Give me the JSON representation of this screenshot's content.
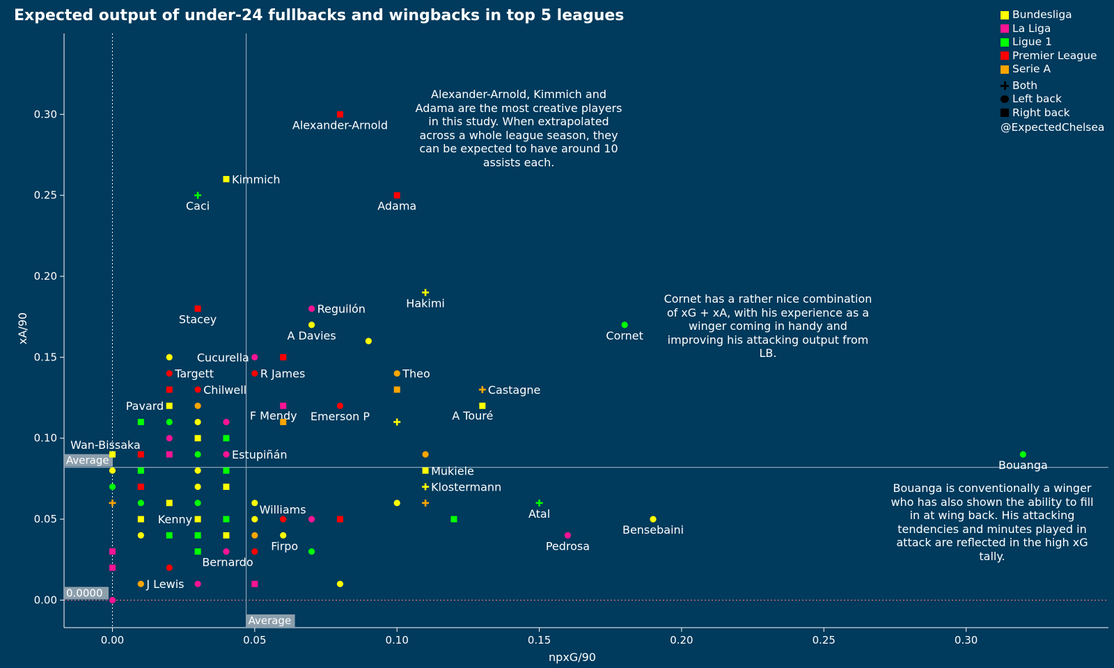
{
  "chart_data": {
    "type": "scatter",
    "title": "Expected output of under-24 fullbacks and wingbacks in top 5 leagues",
    "xlabel": "npxG/90",
    "ylabel": "xA/90",
    "xlim": [
      -0.017,
      0.35
    ],
    "ylim": [
      -0.017,
      0.35
    ],
    "x_ticks": [
      0,
      0.05,
      0.1,
      0.15,
      0.2,
      0.25,
      0.3
    ],
    "x_tick_labels": [
      "0.00",
      "0.05",
      "0.10",
      "0.15",
      "0.20",
      "0.25",
      "0.30"
    ],
    "y_ticks": [
      0,
      0.05,
      0.1,
      0.15,
      0.2,
      0.25,
      0.3
    ],
    "y_tick_labels": [
      "0.00",
      "0.05",
      "0.10",
      "0.15",
      "0.20",
      "0.25",
      "0.30"
    ],
    "reference_lines": {
      "x_average": 0.047,
      "x_average_label": "Average",
      "y_average": 0.082,
      "y_average_label": "Average",
      "y_zero_label": "0.0000"
    },
    "league_colors": {
      "Bundesliga": "#ffff00",
      "La Liga": "#ff1493",
      "Ligue 1": "#00ff00",
      "Premier League": "#ff0000",
      "Serie A": "#ffa500"
    },
    "legend": {
      "leagues": [
        "Bundesliga",
        "La Liga",
        "Ligue 1",
        "Premier League",
        "Serie A"
      ],
      "positions": [
        {
          "label": "Both",
          "shape": "cross"
        },
        {
          "label": "Left back",
          "shape": "circle"
        },
        {
          "label": "Right back",
          "shape": "square"
        }
      ],
      "credit": "@ExpectedChelsea"
    },
    "points": [
      {
        "x": 0.08,
        "y": 0.3,
        "league": "Premier League",
        "pos": "RB",
        "label": "Alexander-Arnold",
        "lp": "below"
      },
      {
        "x": 0.04,
        "y": 0.26,
        "league": "Bundesliga",
        "pos": "RB",
        "label": "Kimmich",
        "lp": "right"
      },
      {
        "x": 0.03,
        "y": 0.25,
        "league": "Ligue 1",
        "pos": "Both",
        "label": "Caci",
        "lp": "below"
      },
      {
        "x": 0.1,
        "y": 0.25,
        "league": "Premier League",
        "pos": "RB",
        "label": "Adama",
        "lp": "below"
      },
      {
        "x": 0.11,
        "y": 0.19,
        "league": "Bundesliga",
        "pos": "Both",
        "label": "Hakimi",
        "lp": "below"
      },
      {
        "x": 0.03,
        "y": 0.18,
        "league": "Premier League",
        "pos": "RB",
        "label": "Stacey",
        "lp": "below"
      },
      {
        "x": 0.07,
        "y": 0.18,
        "league": "La Liga",
        "pos": "LB",
        "label": "Reguilón",
        "lp": "right"
      },
      {
        "x": 0.07,
        "y": 0.17,
        "league": "Bundesliga",
        "pos": "LB",
        "label": "A Davies",
        "lp": "below"
      },
      {
        "x": 0.18,
        "y": 0.17,
        "league": "Ligue 1",
        "pos": "LB",
        "label": "Cornet",
        "lp": "below"
      },
      {
        "x": 0.09,
        "y": 0.16,
        "league": "Bundesliga",
        "pos": "LB"
      },
      {
        "x": 0.02,
        "y": 0.15,
        "league": "Bundesliga",
        "pos": "LB"
      },
      {
        "x": 0.05,
        "y": 0.15,
        "league": "La Liga",
        "pos": "LB",
        "label": "Cucurella",
        "lp": "left"
      },
      {
        "x": 0.06,
        "y": 0.15,
        "league": "Premier League",
        "pos": "RB"
      },
      {
        "x": 0.02,
        "y": 0.14,
        "league": "Premier League",
        "pos": "LB",
        "label": "Targett",
        "lp": "right"
      },
      {
        "x": 0.05,
        "y": 0.14,
        "league": "Premier League",
        "pos": "LB",
        "label": "R James",
        "lp": "right"
      },
      {
        "x": 0.1,
        "y": 0.14,
        "league": "Serie A",
        "pos": "LB",
        "label": "Theo",
        "lp": "right"
      },
      {
        "x": 0.02,
        "y": 0.13,
        "league": "Premier League",
        "pos": "RB"
      },
      {
        "x": 0.03,
        "y": 0.13,
        "league": "Premier League",
        "pos": "LB",
        "label": "Chilwell",
        "lp": "right"
      },
      {
        "x": 0.1,
        "y": 0.13,
        "league": "Serie A",
        "pos": "RB"
      },
      {
        "x": 0.13,
        "y": 0.13,
        "league": "Serie A",
        "pos": "Both",
        "label": "Castagne",
        "lp": "right"
      },
      {
        "x": 0.02,
        "y": 0.12,
        "league": "Bundesliga",
        "pos": "RB",
        "label": "Pavard",
        "lp": "left"
      },
      {
        "x": 0.03,
        "y": 0.12,
        "league": "Serie A",
        "pos": "LB"
      },
      {
        "x": 0.06,
        "y": 0.12,
        "league": "La Liga",
        "pos": "RB",
        "label": "F Mendy",
        "lp": "belowleft"
      },
      {
        "x": 0.08,
        "y": 0.12,
        "league": "Premier League",
        "pos": "LB",
        "label": "Emerson P",
        "lp": "below"
      },
      {
        "x": 0.13,
        "y": 0.12,
        "league": "Bundesliga",
        "pos": "RB",
        "label": "A Touré",
        "lp": "belowleft"
      },
      {
        "x": 0.01,
        "y": 0.11,
        "league": "Ligue 1",
        "pos": "RB"
      },
      {
        "x": 0.02,
        "y": 0.11,
        "league": "Ligue 1",
        "pos": "LB"
      },
      {
        "x": 0.03,
        "y": 0.11,
        "league": "Bundesliga",
        "pos": "LB"
      },
      {
        "x": 0.04,
        "y": 0.11,
        "league": "La Liga",
        "pos": "LB"
      },
      {
        "x": 0.06,
        "y": 0.11,
        "league": "Serie A",
        "pos": "RB"
      },
      {
        "x": 0.1,
        "y": 0.11,
        "league": "Bundesliga",
        "pos": "Both"
      },
      {
        "x": 0.02,
        "y": 0.1,
        "league": "La Liga",
        "pos": "LB"
      },
      {
        "x": 0.03,
        "y": 0.1,
        "league": "Bundesliga",
        "pos": "RB"
      },
      {
        "x": 0.04,
        "y": 0.1,
        "league": "Ligue 1",
        "pos": "RB"
      },
      {
        "x": 0.0,
        "y": 0.09,
        "league": "Bundesliga",
        "pos": "RB",
        "label": "Wan-Bissaka",
        "lp": "aboveleft"
      },
      {
        "x": 0.01,
        "y": 0.09,
        "league": "Premier League",
        "pos": "RB"
      },
      {
        "x": 0.02,
        "y": 0.09,
        "league": "La Liga",
        "pos": "RB"
      },
      {
        "x": 0.03,
        "y": 0.09,
        "league": "Ligue 1",
        "pos": "LB"
      },
      {
        "x": 0.04,
        "y": 0.09,
        "league": "La Liga",
        "pos": "LB",
        "label": "Estupiñán",
        "lp": "right"
      },
      {
        "x": 0.11,
        "y": 0.09,
        "league": "Serie A",
        "pos": "LB"
      },
      {
        "x": 0.32,
        "y": 0.09,
        "league": "Ligue 1",
        "pos": "LB",
        "label": "Bouanga",
        "lp": "below"
      },
      {
        "x": 0.0,
        "y": 0.08,
        "league": "Bundesliga",
        "pos": "LB"
      },
      {
        "x": 0.01,
        "y": 0.08,
        "league": "Ligue 1",
        "pos": "RB"
      },
      {
        "x": 0.03,
        "y": 0.08,
        "league": "Bundesliga",
        "pos": "LB"
      },
      {
        "x": 0.04,
        "y": 0.08,
        "league": "Ligue 1",
        "pos": "RB"
      },
      {
        "x": 0.11,
        "y": 0.08,
        "league": "Bundesliga",
        "pos": "RB",
        "label": "Mukiele",
        "lp": "right"
      },
      {
        "x": 0.0,
        "y": 0.07,
        "league": "Ligue 1",
        "pos": "LB"
      },
      {
        "x": 0.01,
        "y": 0.07,
        "league": "Premier League",
        "pos": "RB"
      },
      {
        "x": 0.01,
        "y": 0.07,
        "league": "Premier League",
        "pos": "LB"
      },
      {
        "x": 0.03,
        "y": 0.07,
        "league": "Bundesliga",
        "pos": "LB"
      },
      {
        "x": 0.04,
        "y": 0.07,
        "league": "Bundesliga",
        "pos": "RB"
      },
      {
        "x": 0.11,
        "y": 0.07,
        "league": "Bundesliga",
        "pos": "Both",
        "label": "Klostermann",
        "lp": "right"
      },
      {
        "x": 0.0,
        "y": 0.06,
        "league": "Serie A",
        "pos": "Both"
      },
      {
        "x": 0.01,
        "y": 0.06,
        "league": "Ligue 1",
        "pos": "LB"
      },
      {
        "x": 0.02,
        "y": 0.06,
        "league": "Bundesliga",
        "pos": "RB"
      },
      {
        "x": 0.03,
        "y": 0.06,
        "league": "Ligue 1",
        "pos": "LB"
      },
      {
        "x": 0.05,
        "y": 0.06,
        "league": "Bundesliga",
        "pos": "LB"
      },
      {
        "x": 0.1,
        "y": 0.06,
        "league": "Bundesliga",
        "pos": "LB"
      },
      {
        "x": 0.11,
        "y": 0.06,
        "league": "Serie A",
        "pos": "Both"
      },
      {
        "x": 0.15,
        "y": 0.06,
        "league": "Ligue 1",
        "pos": "Both",
        "label": "Atal",
        "lp": "below"
      },
      {
        "x": 0.01,
        "y": 0.05,
        "league": "Bundesliga",
        "pos": "RB"
      },
      {
        "x": 0.03,
        "y": 0.05,
        "league": "Bundesliga",
        "pos": "RB",
        "label": "Kenny",
        "lp": "left"
      },
      {
        "x": 0.04,
        "y": 0.05,
        "league": "Ligue 1",
        "pos": "RB"
      },
      {
        "x": 0.05,
        "y": 0.05,
        "league": "Bundesliga",
        "pos": "LB"
      },
      {
        "x": 0.06,
        "y": 0.05,
        "league": "Premier League",
        "pos": "LB"
      },
      {
        "x": 0.07,
        "y": 0.05,
        "league": "La Liga",
        "pos": "LB",
        "label": "Williams",
        "lp": "aboveleft"
      },
      {
        "x": 0.08,
        "y": 0.05,
        "league": "Premier League",
        "pos": "RB"
      },
      {
        "x": 0.12,
        "y": 0.05,
        "league": "Ligue 1",
        "pos": "RB"
      },
      {
        "x": 0.19,
        "y": 0.05,
        "league": "Bundesliga",
        "pos": "LB",
        "label": "Bensebaini",
        "lp": "below"
      },
      {
        "x": 0.01,
        "y": 0.04,
        "league": "Bundesliga",
        "pos": "LB"
      },
      {
        "x": 0.02,
        "y": 0.04,
        "league": "Ligue 1",
        "pos": "RB"
      },
      {
        "x": 0.03,
        "y": 0.04,
        "league": "Ligue 1",
        "pos": "RB"
      },
      {
        "x": 0.04,
        "y": 0.04,
        "league": "Bundesliga",
        "pos": "RB"
      },
      {
        "x": 0.05,
        "y": 0.04,
        "league": "Serie A",
        "pos": "LB"
      },
      {
        "x": 0.06,
        "y": 0.04,
        "league": "Bundesliga",
        "pos": "LB",
        "label": "Firpo",
        "lp": "belowright"
      },
      {
        "x": 0.16,
        "y": 0.04,
        "league": "La Liga",
        "pos": "LB",
        "label": "Pedrosa",
        "lp": "below"
      },
      {
        "x": 0.03,
        "y": 0.03,
        "league": "Ligue 1",
        "pos": "RB"
      },
      {
        "x": 0.04,
        "y": 0.03,
        "league": "La Liga",
        "pos": "LB",
        "label": "Bernardo",
        "lp": "belowright"
      },
      {
        "x": 0.05,
        "y": 0.03,
        "league": "Premier League",
        "pos": "LB"
      },
      {
        "x": 0.07,
        "y": 0.03,
        "league": "Ligue 1",
        "pos": "LB"
      },
      {
        "x": 0.0,
        "y": 0.03,
        "league": "La Liga",
        "pos": "RB"
      },
      {
        "x": 0.0,
        "y": 0.02,
        "league": "La Liga",
        "pos": "RB"
      },
      {
        "x": 0.02,
        "y": 0.02,
        "league": "Premier League",
        "pos": "LB"
      },
      {
        "x": 0.01,
        "y": 0.01,
        "league": "Serie A",
        "pos": "LB",
        "label": "J Lewis",
        "lp": "right"
      },
      {
        "x": 0.03,
        "y": 0.01,
        "league": "La Liga",
        "pos": "LB"
      },
      {
        "x": 0.05,
        "y": 0.01,
        "league": "La Liga",
        "pos": "RB"
      },
      {
        "x": 0.08,
        "y": 0.01,
        "league": "Bundesliga",
        "pos": "LB"
      },
      {
        "x": 0.0,
        "y": 0.0,
        "league": "La Liga",
        "pos": "LB"
      }
    ],
    "annotations": [
      {
        "lines": [
          "Alexander-Arnold, Kimmich and",
          "Adama are the most creative players",
          "in this study. When extrapolated",
          "across a whole league season, they",
          "can be expected to have around 10",
          "assists each."
        ]
      },
      {
        "lines": [
          "Cornet has a rather nice combination",
          "of xG + xA, with his experience as a",
          "winger coming in handy and",
          "improving his attacking output from",
          "LB."
        ]
      },
      {
        "lines": [
          "Bouanga is conventionally a winger",
          "who has also shown the ability to fill",
          "in at wing back. His attacking",
          "tendencies and minutes played in",
          "attack are reflected in the high xG",
          "tally."
        ]
      }
    ]
  }
}
